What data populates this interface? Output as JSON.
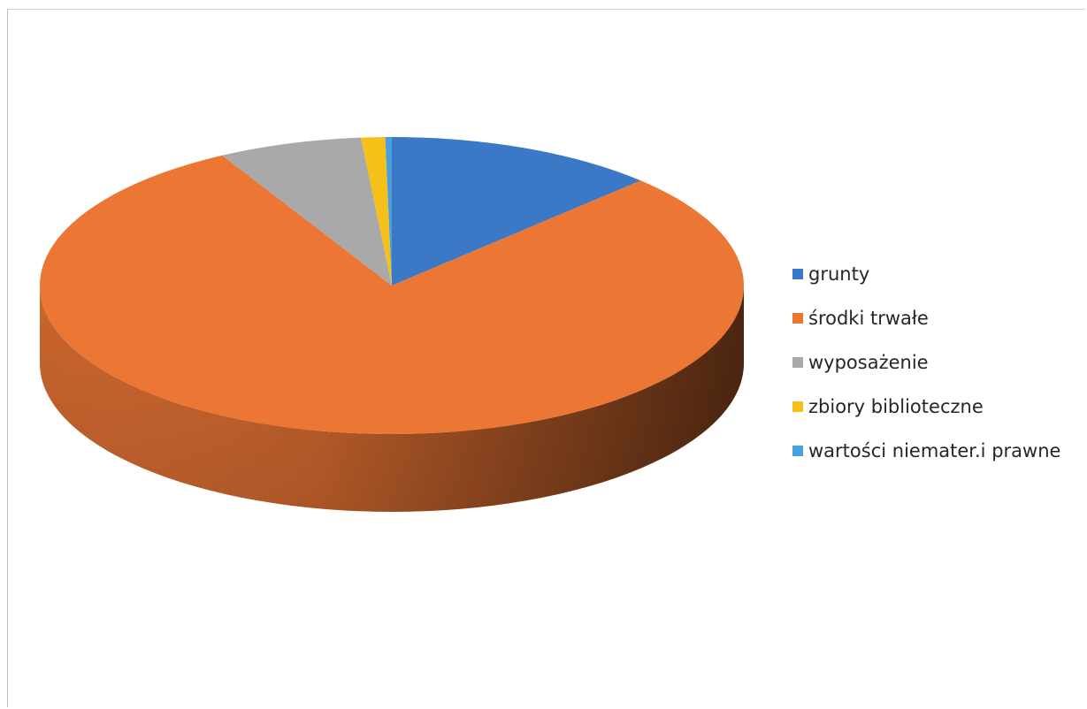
{
  "chart_data": {
    "type": "pie",
    "variant": "3d",
    "title": "",
    "categories": [
      "grunty",
      "środki trwałe",
      "wyposażenie",
      "zbiory biblioteczne",
      "wartości niemater.i prawne"
    ],
    "values": [
      12.5,
      79.5,
      6.6,
      1.1,
      0.3
    ],
    "unit": "percent",
    "colors": [
      "#3b79c6",
      "#ec7634",
      "#a9a9a9",
      "#f5c01a",
      "#4aa0dc"
    ],
    "legend_position": "right"
  }
}
